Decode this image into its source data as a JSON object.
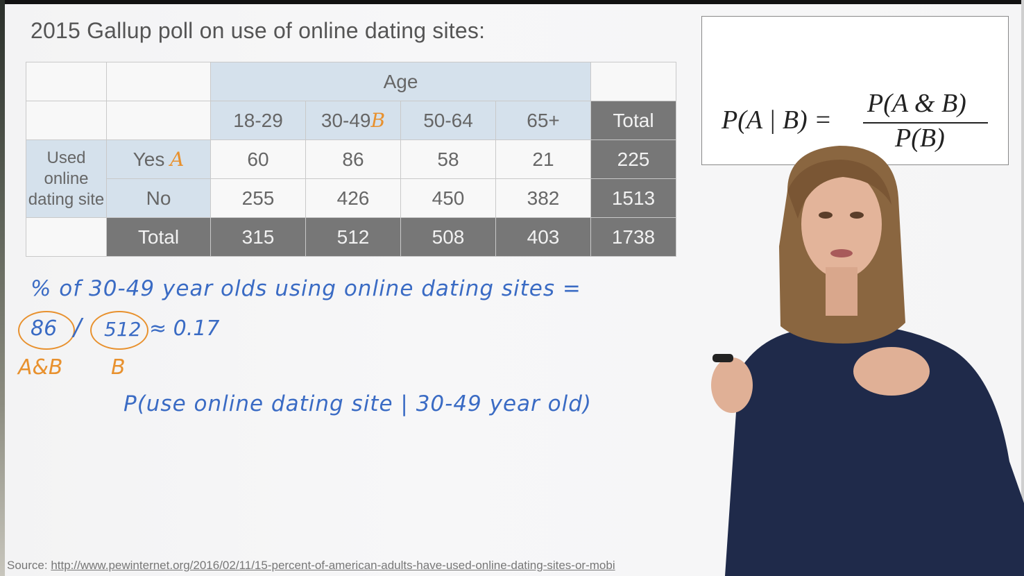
{
  "slide": {
    "title": "2015 Gallup poll on use of online dating sites:"
  },
  "table": {
    "age_header": "Age",
    "columns": [
      "18-29",
      "30-49",
      "50-64",
      "65+"
    ],
    "col_mark": "B",
    "total_label": "Total",
    "row_group_label": "Used online dating site",
    "rows": [
      {
        "label": "Yes",
        "mark": "A",
        "values": [
          "60",
          "86",
          "58",
          "21"
        ],
        "total": "225"
      },
      {
        "label": "No",
        "mark": "",
        "values": [
          "255",
          "426",
          "450",
          "382"
        ],
        "total": "1513"
      }
    ],
    "totals_row": {
      "label": "Total",
      "values": [
        "315",
        "512",
        "508",
        "403"
      ],
      "total": "1738"
    }
  },
  "formula": {
    "lhs": "P(A | B) =",
    "numerator": "P(A & B)",
    "denominator": "P(B)"
  },
  "handwriting": {
    "line1": "% of 30-49 year olds using online dating sites =",
    "num": "86",
    "slash": "/",
    "den": "512",
    "approx": "≈ 0.17",
    "label_num": "A&B",
    "label_den": "B",
    "line3": "P(use online dating site | 30-49 year old)"
  },
  "source": {
    "label": "Source:",
    "url": "http://www.pewinternet.org/2016/02/11/15-percent-of-american-adults-have-used-online-dating-sites-or-mobi"
  },
  "colors": {
    "ink_blue": "#3a6bc4",
    "ink_orange": "#e8912e",
    "header_blue": "#d5e1ec",
    "total_gray": "#777777"
  }
}
